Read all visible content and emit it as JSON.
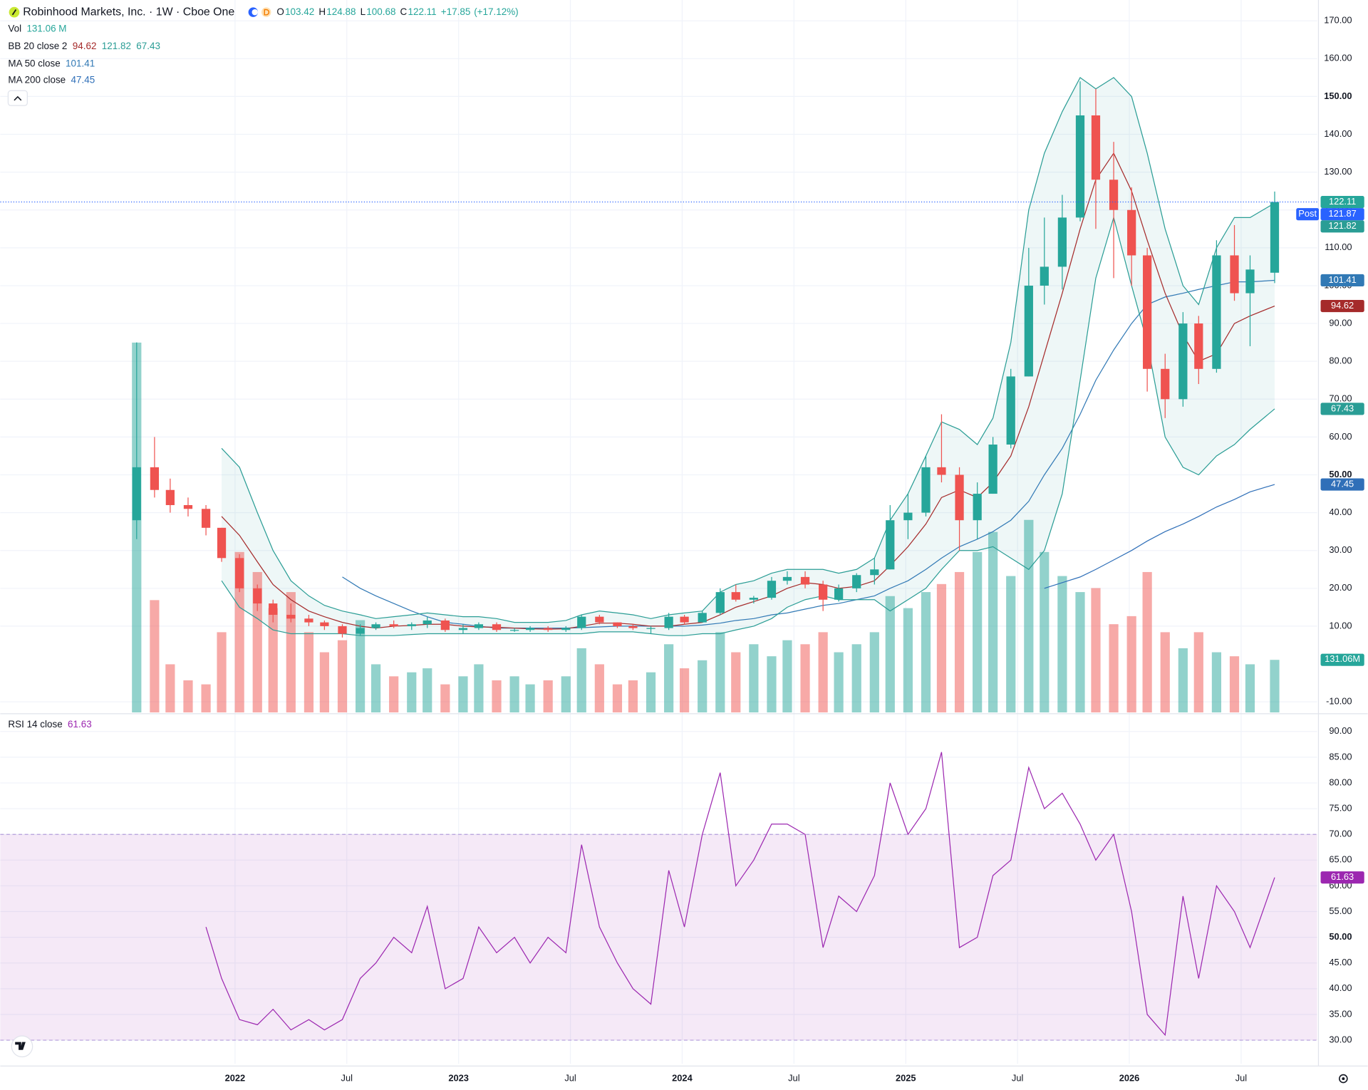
{
  "chart_data": {
    "type": "candlestick",
    "title": "Robinhood Markets, Inc. · 1W · Cboe One",
    "ohlc_labels": [
      "O",
      "H",
      "L",
      "C"
    ],
    "change": {
      "value": 17.85,
      "label": "+17.85"
    },
    "change_pct": {
      "value": 17.12,
      "label": "(+17.12%)"
    },
    "up_color": "#26a69a",
    "down_color": "#ef5350",
    "x": [
      2021.56,
      2021.64,
      2021.71,
      2021.79,
      2021.87,
      2021.94,
      2022.02,
      2022.1,
      2022.17,
      2022.25,
      2022.33,
      2022.4,
      2022.48,
      2022.56,
      2022.63,
      2022.71,
      2022.79,
      2022.86,
      2022.94,
      2023.02,
      2023.09,
      2023.17,
      2023.25,
      2023.32,
      2023.4,
      2023.48,
      2023.55,
      2023.63,
      2023.71,
      2023.78,
      2023.86,
      2023.94,
      2024.01,
      2024.09,
      2024.17,
      2024.24,
      2024.32,
      2024.4,
      2024.47,
      2024.55,
      2024.63,
      2024.7,
      2024.78,
      2024.86,
      2024.93,
      2025.01,
      2025.09,
      2025.16,
      2025.24,
      2025.32,
      2025.39,
      2025.47,
      2025.55,
      2025.62,
      2025.7,
      2025.78,
      2025.85,
      2025.93,
      2026.01,
      2026.08,
      2026.16,
      2026.24,
      2026.31,
      2026.39,
      2026.47,
      2026.54,
      2026.65
    ],
    "open": [
      38,
      52,
      46,
      42,
      41,
      36,
      28,
      20,
      16,
      13,
      12,
      11,
      10,
      8,
      9.5,
      10.5,
      10,
      10.5,
      11.5,
      9,
      9.5,
      10.5,
      9,
      9,
      9.5,
      9,
      9.5,
      12.5,
      11,
      10,
      9.5,
      9.5,
      12.5,
      11,
      13.5,
      19,
      17,
      17.5,
      22,
      23,
      21,
      17,
      20,
      23.5,
      25,
      38,
      40,
      52,
      50,
      38,
      45,
      58,
      76,
      100,
      105,
      118,
      145,
      128,
      120,
      108,
      78,
      70,
      90,
      78,
      108,
      98,
      103.42
    ],
    "high": [
      85,
      60,
      49,
      44,
      42,
      36,
      29,
      21,
      17,
      16,
      13,
      11.5,
      10.5,
      10.5,
      11,
      11.5,
      11,
      12.5,
      12,
      10.5,
      11,
      11,
      9.5,
      10,
      10,
      10,
      13,
      13,
      11,
      10.5,
      10,
      13.5,
      13,
      14,
      20,
      21,
      18,
      23,
      24.5,
      24.5,
      22,
      21,
      24,
      28,
      42,
      45,
      55,
      66,
      52,
      48,
      60,
      78,
      110,
      118,
      124,
      154,
      152,
      138,
      126,
      110,
      82,
      93,
      92,
      112,
      116,
      108,
      124.88
    ],
    "low": [
      33,
      44,
      40,
      39,
      34,
      27,
      19,
      14,
      11,
      11,
      10,
      9,
      7,
      7.5,
      9,
      9.5,
      9,
      9.5,
      8.5,
      8,
      9,
      8.5,
      8.5,
      8.5,
      8.5,
      8.5,
      9,
      10.5,
      9.5,
      9,
      8,
      9,
      10.5,
      11,
      13,
      16.5,
      16,
      17,
      21,
      20,
      14,
      16.5,
      19,
      21,
      25,
      33,
      39,
      48,
      30,
      33,
      45,
      57,
      76,
      95,
      99,
      117,
      115,
      102,
      100,
      72,
      65,
      68,
      74,
      77,
      96,
      84,
      100.68
    ],
    "close": [
      52,
      46,
      42,
      41,
      36,
      28,
      20,
      16,
      13,
      12,
      11,
      10,
      8,
      9.5,
      10.5,
      10,
      10.5,
      11.5,
      9,
      9.5,
      10.5,
      9,
      9,
      9.5,
      9,
      9.5,
      12.5,
      11,
      10,
      9.5,
      9.5,
      12.5,
      11,
      13.5,
      19,
      17,
      17.5,
      22,
      23,
      21,
      17,
      20,
      23.5,
      25,
      38,
      40,
      52,
      50,
      38,
      45,
      58,
      76,
      100,
      105,
      118,
      145,
      128,
      120,
      108,
      78,
      70,
      90,
      78,
      108,
      98,
      104.26,
      122.11
    ],
    "volume": {
      "name": "Vol",
      "unit": "M",
      "values": [
        922,
        280,
        120,
        80,
        70,
        200,
        400,
        350,
        260,
        300,
        200,
        150,
        180,
        230,
        120,
        90,
        100,
        110,
        70,
        90,
        120,
        80,
        90,
        70,
        80,
        90,
        160,
        120,
        70,
        80,
        100,
        170,
        110,
        130,
        200,
        150,
        170,
        140,
        180,
        170,
        200,
        150,
        170,
        200,
        290,
        260,
        300,
        320,
        350,
        400,
        450,
        340,
        480,
        400,
        340,
        300,
        310,
        220,
        240,
        350,
        200,
        160,
        200,
        150,
        140,
        120,
        131.06
      ]
    },
    "bb": {
      "name": "BB 20 close 2",
      "basis": {
        "color": "#a52a2a",
        "values": [
          null,
          null,
          null,
          null,
          null,
          39,
          34,
          27,
          21,
          17,
          14,
          12.5,
          11,
          10,
          9.5,
          10,
          10.2,
          10.5,
          10.5,
          10,
          9.8,
          9.7,
          9.5,
          9.3,
          9.2,
          9.3,
          10,
          10.8,
          10.8,
          10.5,
          10,
          10,
          10.5,
          11,
          13,
          15,
          16.5,
          18,
          20,
          21.5,
          21,
          20,
          20.5,
          22,
          26,
          31,
          37,
          44,
          46,
          44,
          48,
          55,
          68,
          82,
          98,
          115,
          128,
          135,
          125,
          112,
          98,
          87,
          80,
          82,
          90,
          92,
          94.62
        ]
      },
      "upper": {
        "color": "#2a9d95",
        "values": [
          null,
          null,
          null,
          null,
          null,
          57,
          52,
          40,
          30,
          22,
          18,
          15.5,
          14,
          13,
          12,
          12.5,
          13,
          13.5,
          13,
          12.5,
          12.5,
          12,
          11,
          11,
          11,
          11.5,
          13,
          14,
          13.5,
          13,
          12,
          13,
          13.5,
          14,
          19,
          21,
          22,
          24,
          25,
          25,
          25,
          24,
          25,
          28,
          38,
          45,
          55,
          64,
          62,
          58,
          65,
          85,
          120,
          135,
          146,
          155,
          152,
          155,
          150,
          135,
          115,
          100,
          95,
          110,
          118,
          118,
          121.82
        ]
      },
      "lower": {
        "color": "#2a9d95",
        "values": [
          null,
          null,
          null,
          null,
          null,
          22,
          15,
          12,
          9,
          8,
          8,
          8,
          8,
          7.5,
          7.5,
          7.5,
          7.8,
          8,
          8,
          8,
          8,
          8,
          8,
          8,
          8,
          8,
          8,
          8.5,
          8.5,
          8.5,
          8,
          7.5,
          7.5,
          8,
          8,
          9,
          10,
          12,
          15,
          17,
          18,
          17,
          17,
          17,
          14,
          17,
          20,
          25,
          30,
          30,
          31,
          28,
          25,
          30,
          45,
          75,
          102,
          118,
          100,
          85,
          60,
          52,
          50,
          55,
          58,
          62,
          67.43
        ]
      }
    },
    "ma50": {
      "name": "MA 50 close",
      "color": "#3179b5",
      "values": [
        null,
        null,
        null,
        null,
        null,
        null,
        null,
        null,
        null,
        null,
        null,
        null,
        23,
        20,
        18,
        16,
        14,
        12.5,
        11,
        10.5,
        10,
        9.5,
        9.5,
        9.5,
        9.5,
        9.5,
        9.6,
        9.8,
        10,
        10,
        10,
        10,
        10,
        10.3,
        10.8,
        11.5,
        12,
        13,
        13.5,
        14.5,
        15.5,
        16,
        17,
        18,
        20,
        22,
        25,
        28,
        31,
        33,
        35,
        38,
        43,
        50,
        57,
        66,
        75,
        83,
        90,
        95,
        97,
        98,
        99,
        100,
        101,
        101,
        101.41
      ]
    },
    "ma200": {
      "name": "MA 200 close",
      "color": "#2f6fb8",
      "values": [
        null,
        null,
        null,
        null,
        null,
        null,
        null,
        null,
        null,
        null,
        null,
        null,
        null,
        null,
        null,
        null,
        null,
        null,
        null,
        null,
        null,
        null,
        null,
        null,
        null,
        null,
        null,
        null,
        null,
        null,
        null,
        null,
        null,
        null,
        null,
        null,
        null,
        null,
        null,
        null,
        null,
        null,
        null,
        null,
        null,
        null,
        null,
        null,
        null,
        null,
        null,
        null,
        null,
        20,
        21.5,
        23,
        25,
        27.5,
        30,
        32.5,
        35,
        37,
        39,
        41.5,
        43.5,
        45.5,
        47.45
      ]
    },
    "post": {
      "label": "Post",
      "value": 121.87,
      "color": "#2962ff"
    },
    "rsi": {
      "name": "RSI 14 close",
      "color": "#9c27b0",
      "values": [
        null,
        null,
        null,
        null,
        52,
        42,
        34,
        33,
        36,
        32,
        34,
        32,
        34,
        42,
        45,
        50,
        47,
        56,
        40,
        42,
        52,
        47,
        50,
        45,
        50,
        47,
        68,
        52,
        45,
        40,
        37,
        63,
        52,
        70,
        82,
        60,
        65,
        72,
        72,
        70,
        48,
        58,
        55,
        62,
        80,
        70,
        75,
        86,
        48,
        50,
        62,
        65,
        83,
        75,
        78,
        72,
        65,
        70,
        55,
        35,
        31,
        58,
        42,
        60,
        55,
        48,
        61.63
      ],
      "ylim": [
        25.4,
        93.2
      ],
      "yticks": [
        {
          "value": 90,
          "label": "90.00"
        },
        {
          "value": 85,
          "label": "85.00"
        },
        {
          "value": 80,
          "label": "80.00"
        },
        {
          "value": 75,
          "label": "75.00"
        },
        {
          "value": 70,
          "label": "70.00"
        },
        {
          "value": 65,
          "label": "65.00"
        },
        {
          "value": 60,
          "label": "60.00"
        },
        {
          "value": 55,
          "label": "55.00"
        },
        {
          "value": 50,
          "label": "50.00",
          "bold": true
        },
        {
          "value": 45,
          "label": "45.00"
        },
        {
          "value": 40,
          "label": "40.00"
        },
        {
          "value": 35,
          "label": "35.00"
        },
        {
          "value": 30,
          "label": "30.00"
        }
      ],
      "bands": [
        70,
        30
      ]
    },
    "xlim": [
      2020.95,
      2026.84
    ],
    "xticks": [
      {
        "value": 2022,
        "label": "2022",
        "bold": true
      },
      {
        "value": 2022.5,
        "label": "Jul"
      },
      {
        "value": 2023,
        "label": "2023",
        "bold": true
      },
      {
        "value": 2023.5,
        "label": "Jul"
      },
      {
        "value": 2024,
        "label": "2024",
        "bold": true
      },
      {
        "value": 2024.5,
        "label": "Jul"
      },
      {
        "value": 2025,
        "label": "2025",
        "bold": true
      },
      {
        "value": 2025.5,
        "label": "Jul"
      },
      {
        "value": 2026,
        "label": "2026",
        "bold": true
      },
      {
        "value": 2026.5,
        "label": "Jul"
      }
    ],
    "ylim": [
      -12.8,
      175.5
    ],
    "yticks": [
      {
        "value": 170,
        "label": "170.00"
      },
      {
        "value": 160,
        "label": "160.00"
      },
      {
        "value": 150,
        "label": "150.00",
        "bold": true
      },
      {
        "value": 140,
        "label": "140.00"
      },
      {
        "value": 130,
        "label": "130.00"
      },
      {
        "value": 120,
        "label": "120.00"
      },
      {
        "value": 110,
        "label": "110.00"
      },
      {
        "value": 100,
        "label": "100.00"
      },
      {
        "value": 90,
        "label": "90.00"
      },
      {
        "value": 80,
        "label": "80.00"
      },
      {
        "value": 70,
        "label": "70.00"
      },
      {
        "value": 60,
        "label": "60.00"
      },
      {
        "value": 50,
        "label": "50.00",
        "bold": true
      },
      {
        "value": 40,
        "label": "40.00"
      },
      {
        "value": 30,
        "label": "30.00"
      },
      {
        "value": 20,
        "label": "20.00"
      },
      {
        "value": 10,
        "label": "10.00"
      },
      {
        "value": -10,
        "label": "-10.00"
      }
    ],
    "grid": true
  }
}
